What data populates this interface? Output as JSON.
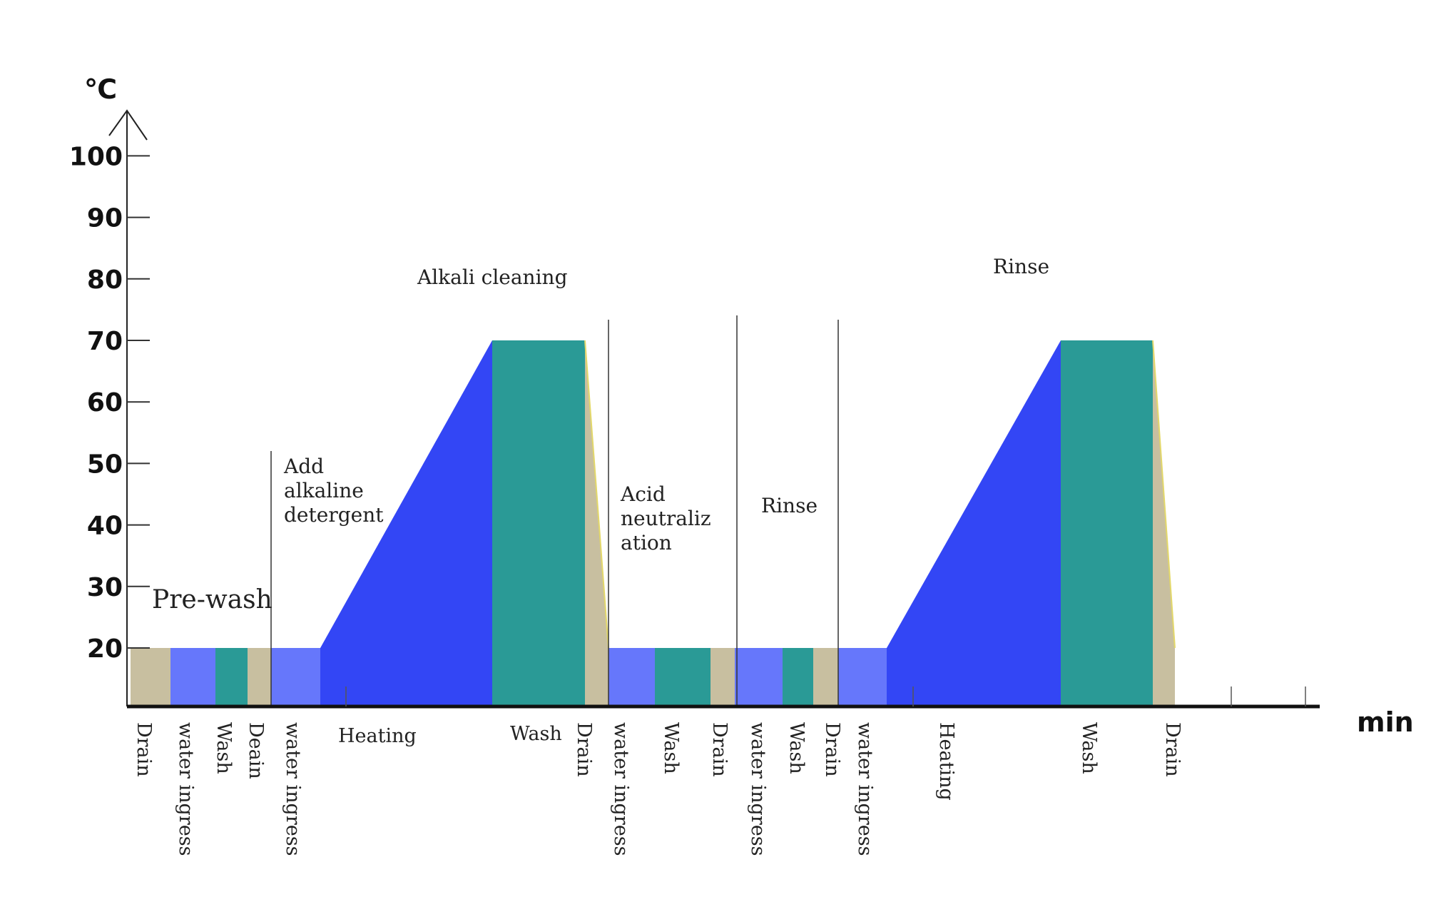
{
  "chart_data": {
    "type": "area",
    "ylabel": "℃",
    "xlabel": "min",
    "yticks": [
      "100",
      "90",
      "80",
      "70",
      "60",
      "50",
      "40",
      "30",
      "20"
    ],
    "ylim": [
      10,
      100
    ],
    "grid": false,
    "colors": {
      "drain": "#c8bfa0",
      "water": "#6677fb",
      "heating": "#3346f5",
      "wash": "#2a9a96"
    },
    "phases": [
      {
        "label": "Pre-wash",
        "lines": [
          "Pre-wash"
        ],
        "size": "large"
      },
      {
        "label": "Add alkaline detergent",
        "lines": [
          "Add",
          "alkaline",
          "detergent"
        ]
      },
      {
        "label": "Alkali cleaning",
        "lines": [
          "Alkali cleaning"
        ]
      },
      {
        "label": "Acid neutralization",
        "lines": [
          "Acid",
          "neutraliz",
          "ation"
        ]
      },
      {
        "label": "Rinse",
        "lines": [
          "Rinse"
        ]
      },
      {
        "label": "Rinse",
        "lines": [
          "Rinse"
        ]
      }
    ],
    "steps": [
      {
        "label": "Drain",
        "kind": "drain",
        "temp_start": 20,
        "temp_end": 20
      },
      {
        "label": "water ingress",
        "kind": "water",
        "temp_start": 20,
        "temp_end": 20
      },
      {
        "label": "Wash",
        "kind": "wash",
        "temp_start": 20,
        "temp_end": 20
      },
      {
        "label": "Deain",
        "kind": "drain",
        "temp_start": 20,
        "temp_end": 20
      },
      {
        "label": "water ingress",
        "kind": "water",
        "temp_start": 20,
        "temp_end": 20
      },
      {
        "label": "Heating",
        "kind": "heating",
        "temp_start": 20,
        "temp_end": 70
      },
      {
        "label": "Wash",
        "kind": "wash",
        "temp_start": 70,
        "temp_end": 70
      },
      {
        "label": "Drain",
        "kind": "drain",
        "temp_start": 70,
        "temp_end": 20
      },
      {
        "label": "water ingress",
        "kind": "water",
        "temp_start": 20,
        "temp_end": 20
      },
      {
        "label": "Wash",
        "kind": "wash",
        "temp_start": 20,
        "temp_end": 20
      },
      {
        "label": "Drain",
        "kind": "drain",
        "temp_start": 20,
        "temp_end": 20
      },
      {
        "label": "water ingress",
        "kind": "water",
        "temp_start": 20,
        "temp_end": 20
      },
      {
        "label": "Wash",
        "kind": "wash",
        "temp_start": 20,
        "temp_end": 20
      },
      {
        "label": "Drain",
        "kind": "drain",
        "temp_start": 20,
        "temp_end": 20
      },
      {
        "label": "water ingress",
        "kind": "water",
        "temp_start": 20,
        "temp_end": 20
      },
      {
        "label": "Heating",
        "kind": "heating",
        "temp_start": 20,
        "temp_end": 70
      },
      {
        "label": "Wash",
        "kind": "wash",
        "temp_start": 70,
        "temp_end": 70
      },
      {
        "label": "Drain",
        "kind": "drain",
        "temp_start": 70,
        "temp_end": 20
      }
    ]
  }
}
